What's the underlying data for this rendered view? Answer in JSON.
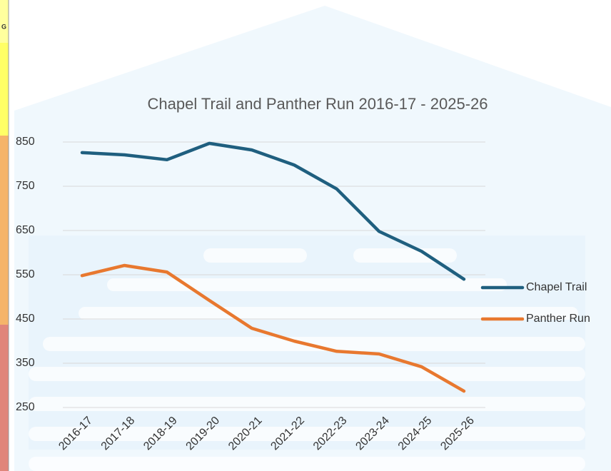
{
  "background": {
    "column_header": "G"
  },
  "chart_data": {
    "type": "line",
    "title": "Chapel Trail and Panther Run 2016-17 - 2025-26",
    "categories": [
      "2016-17",
      "2017-18",
      "2018-19",
      "2019-20",
      "2020-21",
      "2021-22",
      "2022-23",
      "2023-24",
      "2024-25",
      "2025-26"
    ],
    "series": [
      {
        "name": "Chapel Trail",
        "color": "#1f5f7f",
        "values": [
          826,
          821,
          810,
          847,
          832,
          798,
          744,
          648,
          603,
          540
        ]
      },
      {
        "name": "Panther Run",
        "color": "#e8782f",
        "values": [
          548,
          571,
          556,
          492,
          429,
          400,
          377,
          371,
          342,
          287
        ]
      }
    ],
    "ylim": [
      250,
      850
    ],
    "yticks": [
      250,
      350,
      450,
      550,
      650,
      750,
      850
    ],
    "grid": true,
    "legend": "right"
  }
}
